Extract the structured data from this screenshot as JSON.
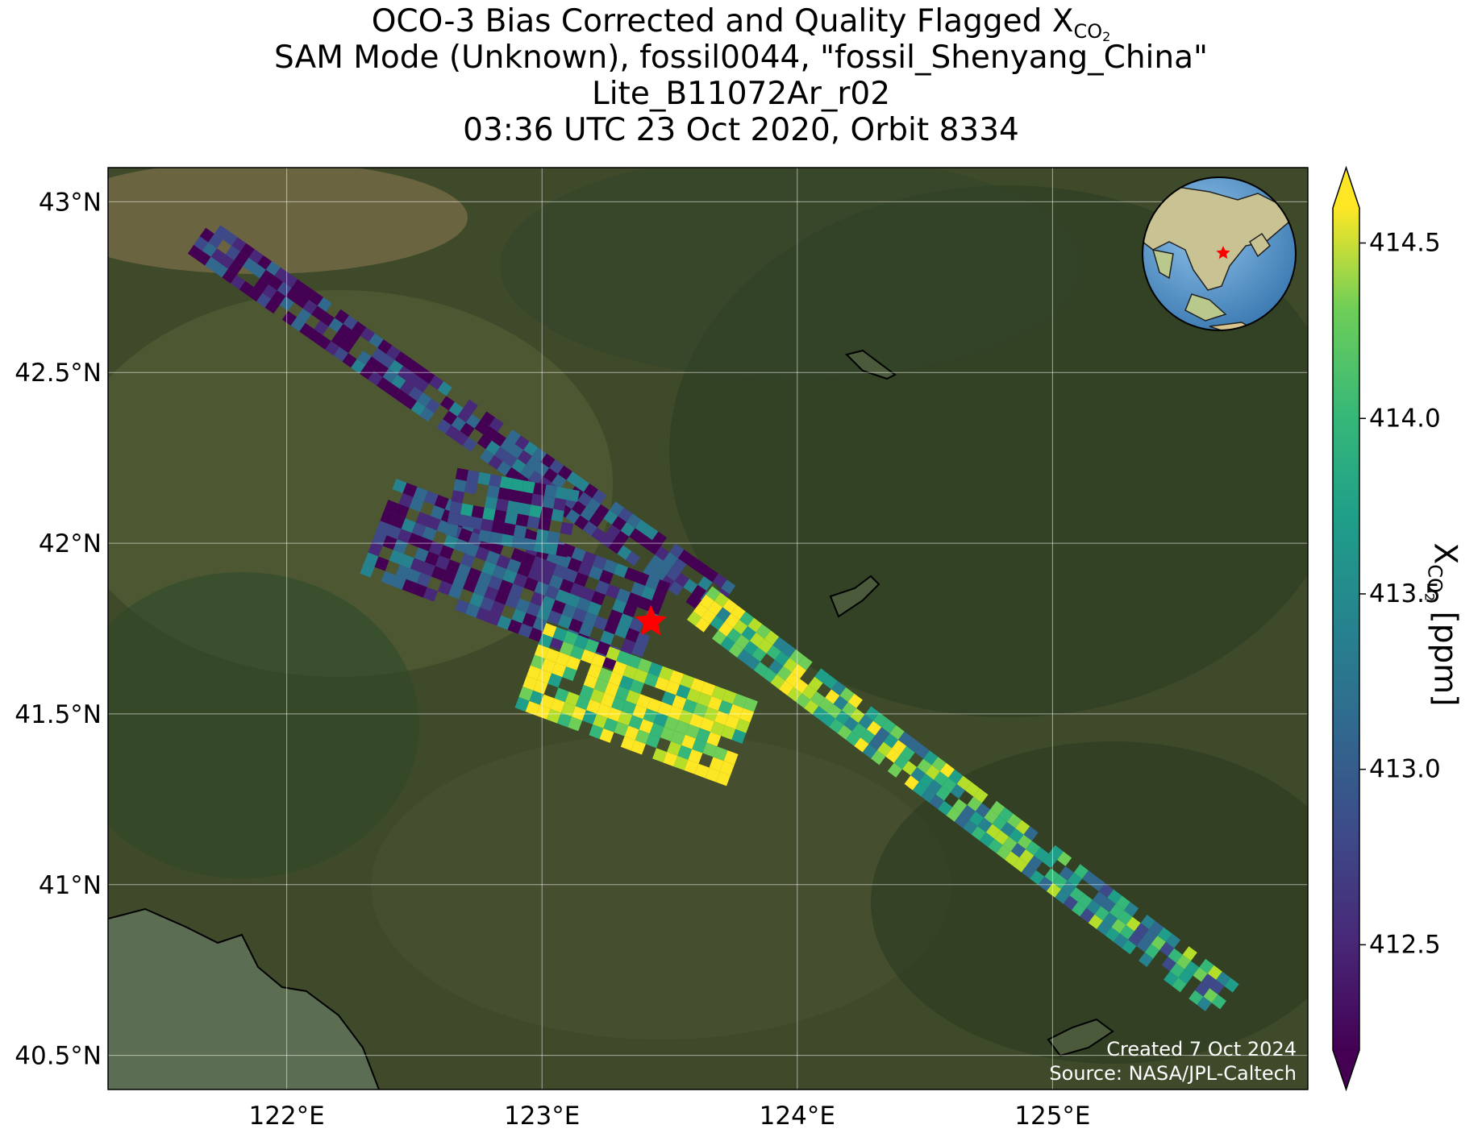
{
  "title": {
    "line1_prefix": "OCO-3 Bias Corrected and Quality Flagged X",
    "line1_sub": "CO",
    "line1_sub2": "2",
    "line2": "SAM Mode (Unknown), fossil0044, \"fossil_Shenyang_China\"",
    "line3": "Lite_B11072Ar_r02",
    "line4": "03:36 UTC 23 Oct 2020, Orbit 8334"
  },
  "map": {
    "lon_range": [
      121.3,
      126.0
    ],
    "lat_range": [
      40.4,
      43.1
    ],
    "lon_ticks": [
      {
        "value": 122,
        "label": "122°E"
      },
      {
        "value": 123,
        "label": "123°E"
      },
      {
        "value": 124,
        "label": "124°E"
      },
      {
        "value": 125,
        "label": "125°E"
      }
    ],
    "lat_ticks": [
      {
        "value": 43.0,
        "label": "43°N"
      },
      {
        "value": 42.5,
        "label": "42.5°N"
      },
      {
        "value": 42.0,
        "label": "42°N"
      },
      {
        "value": 41.5,
        "label": "41.5°N"
      },
      {
        "value": 41.0,
        "label": "41°N"
      },
      {
        "value": 40.5,
        "label": "40.5°N"
      }
    ],
    "grid": true,
    "target": {
      "lon": 123.43,
      "lat": 41.8
    },
    "marker_color": "#ff0000",
    "basemap_colors": {
      "land": "#3f4a2a",
      "forest": "#2f3f22",
      "sea": "#5b6d52"
    }
  },
  "credit": {
    "created": "Created 7 Oct 2024",
    "source": "Source: NASA/JPL-Caltech"
  },
  "colorbar": {
    "label_prefix": "X",
    "label_sub": "CO",
    "label_sub2": "2",
    "label_suffix": " [ppm]",
    "range": [
      412.2,
      414.6
    ],
    "extend": "both",
    "colormap": "viridis",
    "ticks": [
      {
        "value": 412.5,
        "label": "412.5"
      },
      {
        "value": 413.0,
        "label": "413.0"
      },
      {
        "value": 413.5,
        "label": "413.5"
      },
      {
        "value": 414.0,
        "label": "414.0"
      },
      {
        "value": 414.5,
        "label": "414.5"
      }
    ]
  },
  "inset_globe": {
    "center_lon": 123.4,
    "center_lat": 41.8,
    "ocean_color": "#5a9bd4",
    "land_color": "#d9d2b0"
  }
}
